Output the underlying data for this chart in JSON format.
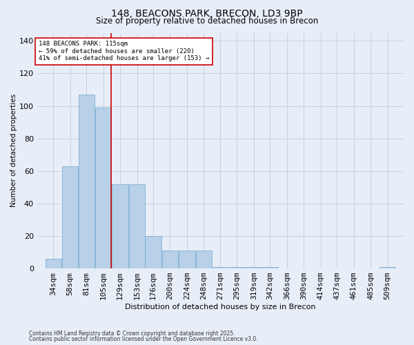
{
  "title1": "148, BEACONS PARK, BRECON, LD3 9BP",
  "title2": "Size of property relative to detached houses in Brecon",
  "xlabel": "Distribution of detached houses by size in Brecon",
  "ylabel": "Number of detached properties",
  "categories": [
    "34sqm",
    "58sqm",
    "81sqm",
    "105sqm",
    "129sqm",
    "153sqm",
    "176sqm",
    "200sqm",
    "224sqm",
    "248sqm",
    "271sqm",
    "295sqm",
    "319sqm",
    "342sqm",
    "366sqm",
    "390sqm",
    "414sqm",
    "437sqm",
    "461sqm",
    "485sqm",
    "509sqm"
  ],
  "values": [
    6,
    63,
    107,
    99,
    52,
    52,
    20,
    11,
    11,
    11,
    1,
    1,
    1,
    1,
    0,
    0,
    0,
    0,
    0,
    0,
    1
  ],
  "bar_color": "#b8d0e8",
  "bar_edge_color": "#6fa8d0",
  "grid_color": "#c8cfe0",
  "bg_color": "#e8eef8",
  "vline_color": "#cc0000",
  "annotation_text": "148 BEACONS PARK: 115sqm\n← 59% of detached houses are smaller (220)\n41% of semi-detached houses are larger (153) →",
  "annotation_box_color": "#ffffff",
  "annotation_box_edge": "#cc0000",
  "footnote1": "Contains HM Land Registry data © Crown copyright and database right 2025.",
  "footnote2": "Contains public sector information licensed under the Open Government Licence v3.0.",
  "ylim": [
    0,
    145
  ],
  "yticks": [
    0,
    20,
    40,
    60,
    80,
    100,
    120,
    140
  ]
}
